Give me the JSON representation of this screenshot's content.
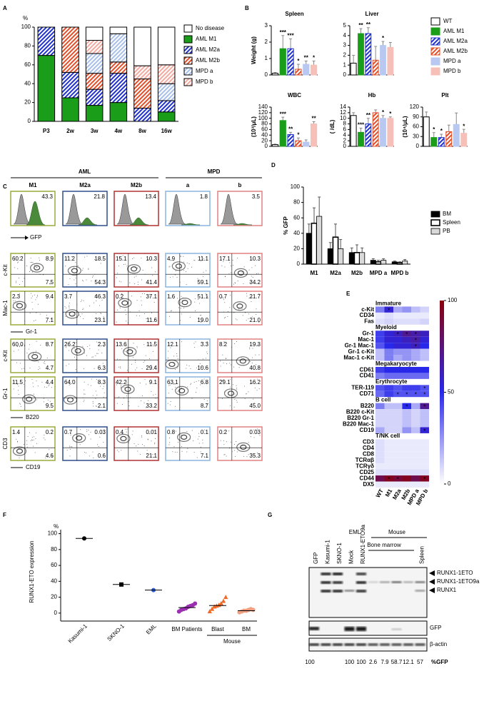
{
  "panel_labels": [
    "A",
    "B",
    "C",
    "D",
    "E",
    "F",
    "G"
  ],
  "chart_data": [
    {
      "type": "stacked_bar",
      "y_unit": "%",
      "categories": [
        "P3",
        "2w",
        "3w",
        "4w",
        "8w",
        "16w"
      ],
      "series": [
        {
          "name": "No disease",
          "color": "#ffffff",
          "hatched": false,
          "values": [
            0,
            0,
            14,
            7,
            41,
            40
          ]
        },
        {
          "name": "AML M1",
          "color": "#1a9e1a",
          "hatched": false,
          "values": [
            70,
            25,
            17,
            20,
            0,
            10
          ]
        },
        {
          "name": "AML M2a",
          "color": "#2233cc",
          "hatched": true,
          "values": [
            30,
            27,
            17,
            31,
            14,
            12
          ]
        },
        {
          "name": "AML M2b",
          "color": "#e0502a",
          "hatched": true,
          "values": [
            0,
            48,
            17,
            12,
            31,
            0
          ]
        },
        {
          "name": "MPD a",
          "color": "#a8c0e8",
          "hatched": true,
          "values": [
            0,
            0,
            21,
            30,
            0,
            18
          ]
        },
        {
          "name": "MPD b",
          "color": "#f2aaa0",
          "hatched": true,
          "values": [
            0,
            0,
            14,
            0,
            14,
            20
          ]
        }
      ],
      "ylim": [
        0,
        100
      ],
      "yticks": [
        0,
        20,
        40,
        60,
        80,
        100
      ]
    },
    {
      "type": "bar",
      "title": "Spleen",
      "y_label": "Weight (g)",
      "values": [
        0.1,
        1.6,
        1.6,
        0.35,
        0.65,
        0.6
      ],
      "errors": [
        0.05,
        0.8,
        0.6,
        0.3,
        0.2,
        0.25
      ],
      "stars": [
        null,
        "***",
        "***",
        "*",
        "**",
        "*"
      ],
      "ylim": [
        0,
        3
      ],
      "yticks": [
        0,
        1,
        2,
        3
      ]
    },
    {
      "type": "bar",
      "title": "Liver",
      "values": [
        1.2,
        4.2,
        4.2,
        1.5,
        3.0,
        2.8
      ],
      "errors": [
        0.8,
        0.5,
        0.6,
        1.4,
        0.4,
        0.5
      ],
      "stars": [
        null,
        "**",
        "**",
        null,
        "*",
        null
      ],
      "ylim": [
        0,
        5
      ],
      "yticks": [
        0,
        1,
        2,
        3,
        4,
        5
      ]
    },
    {
      "type": "bar",
      "title": "WBC",
      "y_label": "(10³/μL)",
      "values": [
        6,
        92,
        42,
        20,
        15,
        80
      ],
      "errors": [
        2,
        12,
        8,
        10,
        8,
        8
      ],
      "stars": [
        null,
        "***",
        "**",
        "*",
        null,
        "**"
      ],
      "ylim": [
        0,
        140
      ],
      "yticks": [
        0,
        20,
        40,
        60,
        80,
        100,
        120,
        140
      ]
    },
    {
      "type": "bar",
      "title": "Hb",
      "y_label": "( /dL)",
      "values": [
        11,
        5,
        8,
        12,
        10,
        10
      ],
      "errors": [
        1,
        1.5,
        2,
        1,
        1,
        0.5
      ],
      "stars": [
        null,
        "***",
        "**",
        null,
        "*",
        "*"
      ],
      "ylim": [
        0,
        14
      ],
      "yticks": [
        0,
        2,
        4,
        6,
        8,
        10,
        12,
        14
      ]
    },
    {
      "type": "bar",
      "title": "Plt",
      "y_label": "(10⁴/μL)",
      "values": [
        90,
        27,
        27,
        45,
        67,
        40
      ],
      "errors": [
        15,
        15,
        10,
        20,
        35,
        12
      ],
      "stars": [
        null,
        "*",
        "*",
        null,
        null,
        "*"
      ],
      "ylim": [
        0,
        120
      ],
      "yticks": [
        0,
        30,
        60,
        90,
        120
      ]
    },
    {
      "type": "grouped_bar",
      "y_label": "% GFP",
      "categories": [
        "M1",
        "M2a",
        "M2b",
        "MPD a",
        "MPD b"
      ],
      "category_colors": [
        "#8aa030",
        "#2e4e8a",
        "#b03030",
        "#6a9ae0",
        "#e08080"
      ],
      "series": [
        {
          "name": "BM",
          "color": "#000000",
          "values": [
            40,
            20,
            15,
            5,
            3
          ],
          "errors": [
            12,
            8,
            6,
            2,
            1
          ]
        },
        {
          "name": "Spleen",
          "color": "#ffffff",
          "values": [
            53,
            35,
            15,
            3,
            2
          ],
          "errors": [
            20,
            17,
            10,
            2,
            1
          ]
        },
        {
          "name": "PB",
          "color": "#d9d9d9",
          "values": [
            62,
            20,
            15,
            5,
            4
          ],
          "errors": [
            25,
            12,
            6,
            2,
            2
          ]
        }
      ],
      "ylim": [
        0,
        100
      ],
      "yticks": [
        0,
        20,
        40,
        60,
        80,
        100
      ]
    },
    {
      "type": "heatmap",
      "columns": [
        "WT",
        "M1",
        "M2a",
        "M2b",
        "MPD a",
        "MPD b"
      ],
      "column_colors": [
        "#000000",
        "#8aa030",
        "#2e4e8a",
        "#b03030",
        "#6a9ae0",
        "#e08080"
      ],
      "zlim": [
        0,
        100
      ],
      "colorbar_ticks": [
        0,
        50,
        100
      ],
      "groups": [
        {
          "name": "Immature",
          "rows": [
            {
              "label": "c-Kit",
              "values": [
                30,
                55,
                20,
                25,
                15,
                10
              ],
              "stars": [
                null,
                "*",
                null,
                null,
                null,
                null
              ]
            },
            {
              "label": "CD34",
              "values": [
                5,
                8,
                5,
                5,
                5,
                5
              ]
            },
            {
              "label": "Fas",
              "values": [
                8,
                10,
                8,
                8,
                8,
                10
              ]
            }
          ]
        },
        {
          "name": "Myeloid",
          "rows": [
            {
              "label": "Gr-1",
              "values": [
                45,
                55,
                60,
                70,
                65,
                60
              ],
              "stars": [
                null,
                null,
                "*",
                "*",
                "*",
                null
              ]
            },
            {
              "label": "Mac-1",
              "values": [
                45,
                55,
                55,
                60,
                65,
                55
              ],
              "stars": [
                null,
                null,
                null,
                null,
                "*",
                null
              ]
            },
            {
              "label": "Gr-1 Mac-1",
              "values": [
                40,
                50,
                55,
                55,
                60,
                50
              ],
              "stars": [
                null,
                null,
                null,
                null,
                "*",
                null
              ]
            },
            {
              "label": "Gr-1 c-Kit",
              "values": [
                15,
                30,
                25,
                25,
                20,
                15
              ]
            },
            {
              "label": "Mac-1 c-Kit",
              "values": [
                15,
                30,
                20,
                25,
                20,
                15
              ]
            }
          ]
        },
        {
          "name": "Megakaryocyte",
          "rows": [
            {
              "label": "CD61",
              "values": [
                45,
                50,
                50,
                50,
                50,
                50
              ]
            },
            {
              "label": "CD41",
              "values": [
                30,
                35,
                35,
                35,
                35,
                35
              ]
            }
          ]
        },
        {
          "name": "Erythrocyte",
          "rows": [
            {
              "label": "TER-119",
              "values": [
                40,
                45,
                40,
                45,
                45,
                40
              ],
              "stars": [
                null,
                null,
                null,
                null,
                null,
                "*"
              ]
            },
            {
              "label": "CD71",
              "values": [
                35,
                45,
                40,
                40,
                40,
                40
              ],
              "stars": [
                null,
                null,
                "*",
                "*",
                "*",
                "*"
              ]
            }
          ]
        },
        {
          "name": "B cell",
          "rows": [
            {
              "label": "B220",
              "values": [
                30,
                15,
                15,
                50,
                20,
                70
              ],
              "stars": [
                null,
                null,
                null,
                "*",
                null,
                "*"
              ]
            },
            {
              "label": "B220 c-Kit",
              "values": [
                10,
                10,
                10,
                15,
                10,
                15
              ]
            },
            {
              "label": "B220 Gr-1",
              "values": [
                10,
                10,
                10,
                15,
                10,
                15
              ]
            },
            {
              "label": "B220 Mac-1",
              "values": [
                10,
                10,
                10,
                15,
                10,
                15
              ]
            },
            {
              "label": "CD19",
              "values": [
                20,
                10,
                10,
                25,
                15,
                55
              ],
              "stars": [
                null,
                null,
                null,
                null,
                null,
                "*"
              ]
            }
          ]
        },
        {
          "name": "T/NK cell",
          "rows": [
            {
              "label": "CD3",
              "values": [
                8,
                5,
                5,
                5,
                5,
                5
              ]
            },
            {
              "label": "CD4",
              "values": [
                8,
                5,
                5,
                5,
                5,
                5
              ]
            },
            {
              "label": "CD8",
              "values": [
                8,
                5,
                5,
                5,
                5,
                5
              ]
            },
            {
              "label": "TCRαβ",
              "values": [
                8,
                5,
                5,
                5,
                5,
                5
              ]
            },
            {
              "label": "TCRγδ",
              "values": [
                5,
                5,
                5,
                5,
                5,
                5
              ]
            },
            {
              "label": "CD25",
              "values": [
                8,
                8,
                8,
                8,
                8,
                8
              ]
            },
            {
              "label": "CD44",
              "values": [
                85,
                95,
                90,
                95,
                85,
                95
              ],
              "stars": [
                null,
                "*",
                "*",
                null,
                null,
                "*"
              ]
            },
            {
              "label": "DX5",
              "values": [
                5,
                5,
                5,
                5,
                5,
                5
              ]
            }
          ]
        }
      ]
    },
    {
      "type": "strip",
      "y_unit": "%",
      "y_label": "RUNX1-ETO expression",
      "categories": [
        "Kasumi-1",
        "SKNO-1",
        "EML",
        "BM Patients",
        "Blast",
        "BM"
      ],
      "group_label": "Mouse",
      "values": [
        [
          94
        ],
        [
          36
        ],
        [
          29
        ],
        [
          2,
          4,
          5,
          6,
          8,
          9,
          10,
          12
        ],
        [
          2,
          5,
          8,
          9,
          10,
          12,
          15,
          20
        ],
        [
          1,
          2,
          3,
          3,
          4,
          5,
          4
        ]
      ],
      "colors": [
        "#000000",
        "#000000",
        "#2a5bd7",
        "#9b30b0",
        "#f06a2a",
        "#f0a080"
      ],
      "markers": [
        "circle",
        "square",
        "circle",
        "circle",
        "triangle",
        "circle"
      ],
      "ylim": [
        -10,
        105
      ],
      "yticks": [
        0,
        20,
        40,
        60,
        80,
        100
      ]
    }
  ],
  "panel_b_legend": {
    "names": [
      "WT",
      "AML M1",
      "AML M2a",
      "AML M2b",
      "MPD a",
      "MPD b"
    ],
    "colors": [
      "#ffffff",
      "#1a9e1a",
      "#2233cc",
      "#e0502a",
      "#b8c8f0",
      "#f6c0b8"
    ],
    "hatched": [
      false,
      false,
      true,
      true,
      false,
      false
    ]
  },
  "flow": {
    "groups": [
      "AML",
      "MPD"
    ],
    "columns": [
      "M1",
      "M2a",
      "M2b",
      "a",
      "b"
    ],
    "column_colors": [
      "#9aaa3a",
      "#2e4e8a",
      "#b03030",
      "#8ab4e0",
      "#e08080"
    ],
    "gfp_label": "GFP",
    "gfp": [
      "43.3",
      "21.8",
      "13.4",
      "1.8",
      "3.5"
    ],
    "rows": [
      {
        "y_label": "c-Kit",
        "numbers": [
          [
            "60.2",
            "8.9",
            "7.5"
          ],
          [
            "11.2",
            "18.5",
            "54.3"
          ],
          [
            "15.1",
            "10.3",
            "41.4"
          ],
          [
            "4.9",
            "11.1",
            "59.1"
          ],
          [
            "17.1",
            "10.3",
            "34.2"
          ]
        ]
      },
      {
        "y_label": "Mac-1",
        "x_label": "Gr-1",
        "numbers": [
          [
            "2.3",
            "9.4",
            "7.1"
          ],
          [
            "3.7",
            "46.3",
            "23.1"
          ],
          [
            "0.2",
            "37.1",
            "11.6"
          ],
          [
            "1.6",
            "51.1",
            "19.0"
          ],
          [
            "0.7",
            "21.7",
            "21.0"
          ]
        ]
      },
      {
        "y_label": "c-Kit",
        "numbers": [
          [
            "60.0",
            "8.7",
            "4.7"
          ],
          [
            "26.2",
            "2.3",
            "6.3"
          ],
          [
            "13.6",
            "11.5",
            "29.4"
          ],
          [
            "12.1",
            "3.3",
            "10.6"
          ],
          [
            "8.2",
            "19.3",
            "40.8"
          ]
        ]
      },
      {
        "y_label": "Gr-1",
        "x_label": "B220",
        "numbers": [
          [
            "11.5",
            "4.4",
            "9.5"
          ],
          [
            "64.0",
            "8.3",
            "2.1"
          ],
          [
            "42.2",
            "9.1",
            "33.2"
          ],
          [
            "63.1",
            "6.8",
            "8.7"
          ],
          [
            "29.1",
            "16.2",
            "45.0"
          ]
        ]
      },
      {
        "y_label": "CD3",
        "x_label": "CD19",
        "numbers": [
          [
            "1.4",
            "0.2",
            "4.6"
          ],
          [
            "0.7",
            "0.03",
            "0.6"
          ],
          [
            "0.4",
            "0.01",
            "21.1"
          ],
          [
            "0.8",
            "0.1",
            "7.1"
          ],
          [
            "0.2",
            "0.03",
            "35.3"
          ]
        ]
      }
    ]
  },
  "blot": {
    "groups": [
      "EML",
      "Mouse",
      "Bone marrow",
      "Spleen"
    ],
    "lanes": [
      "GFP",
      "Kasumi-1",
      "SKNO-1",
      "Mock",
      "RUNX1-ETO9a"
    ],
    "bands": [
      "RUNX1-1ETO",
      "RUNX1-1ETO9a",
      "RUNX1",
      "GFP",
      "β-actin"
    ],
    "gfp_values": [
      "100",
      null,
      null,
      "100",
      "100",
      "2.6",
      "7.9",
      "58.7",
      "12.1",
      "57"
    ],
    "gfp_label": "%GFP"
  }
}
